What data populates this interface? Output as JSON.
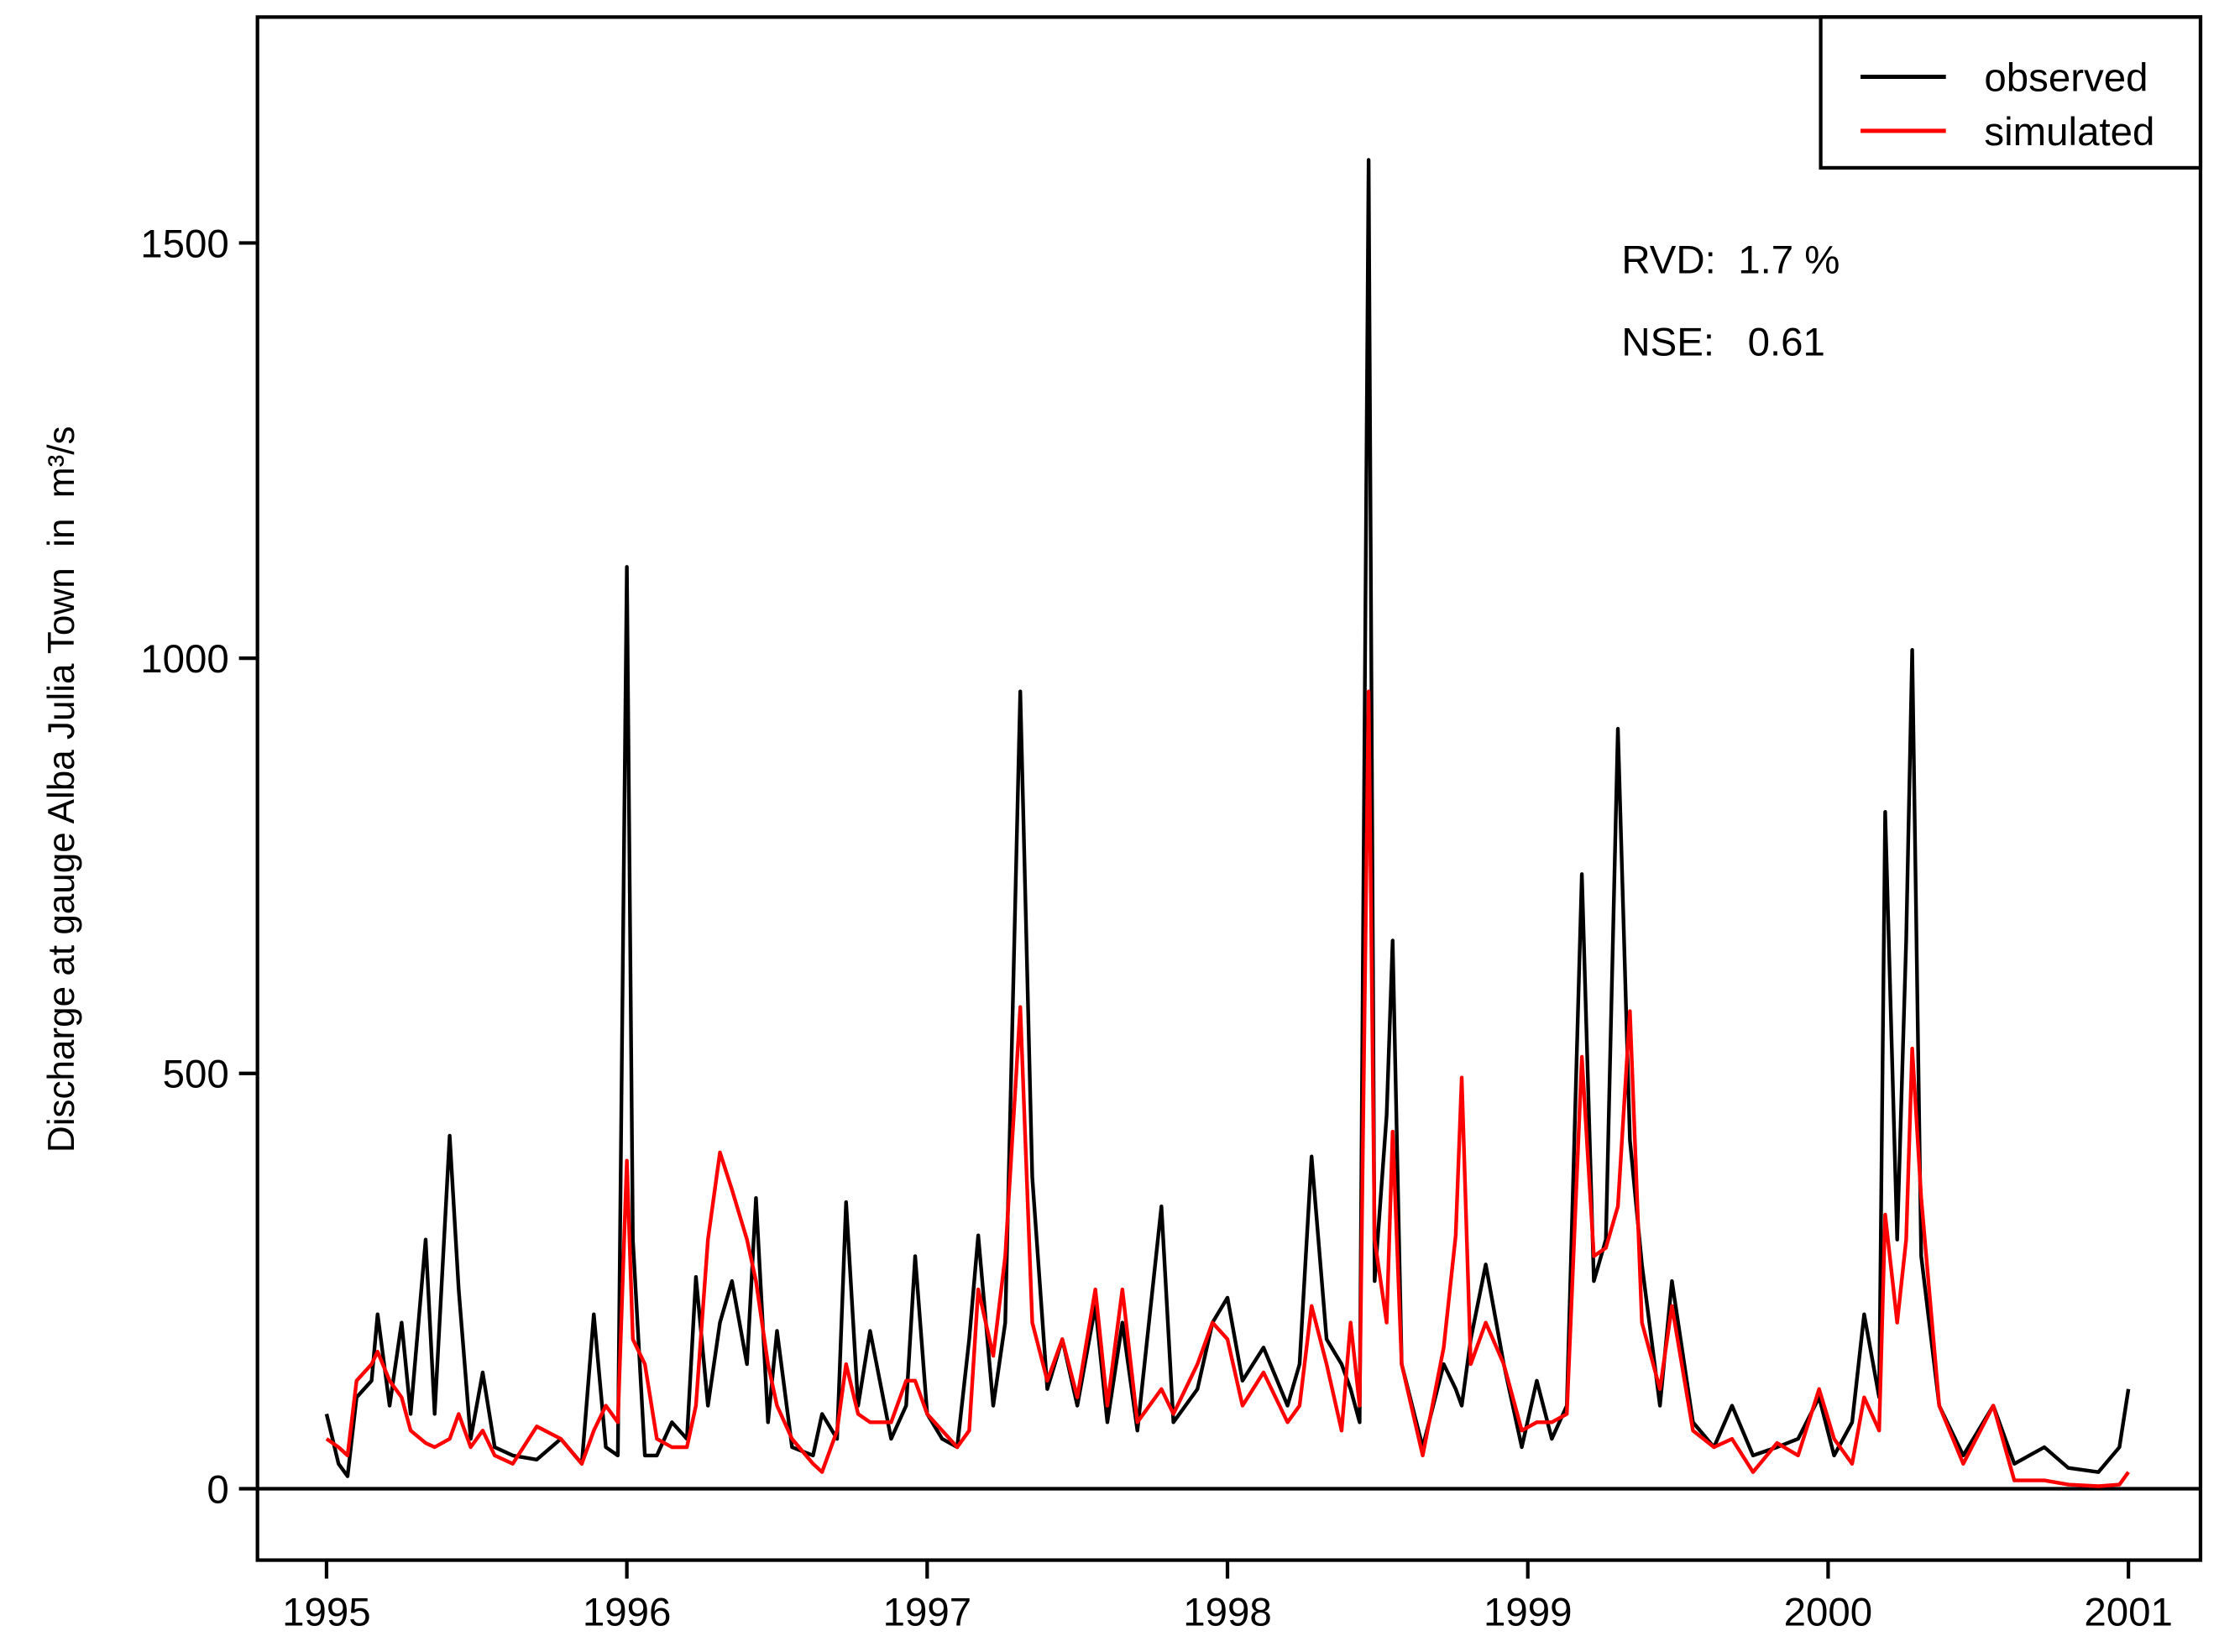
{
  "chart_data": {
    "type": "line",
    "ylabel": "Discharge at gauge Alba Julia Town  in  m³/s",
    "annotations": [
      "RVD:  1.7 %",
      "NSE:   0.61"
    ],
    "legend": "top-right",
    "xlim": [
      1994.77,
      2001.24
    ],
    "ylim": [
      -86,
      1772
    ],
    "xticks": [
      1995,
      1996,
      1997,
      1998,
      1999,
      2000,
      2001
    ],
    "yticks": [
      0,
      500,
      1000,
      1500
    ],
    "hline": 0,
    "x": [
      1995.0,
      1995.04,
      1995.07,
      1995.1,
      1995.15,
      1995.17,
      1995.21,
      1995.25,
      1995.28,
      1995.33,
      1995.36,
      1995.41,
      1995.44,
      1995.48,
      1995.52,
      1995.56,
      1995.62,
      1995.7,
      1995.78,
      1995.85,
      1995.89,
      1995.93,
      1995.97,
      1996.0,
      1996.02,
      1996.06,
      1996.1,
      1996.15,
      1996.2,
      1996.23,
      1996.27,
      1996.31,
      1996.35,
      1996.4,
      1996.43,
      1996.47,
      1996.5,
      1996.55,
      1996.62,
      1996.65,
      1996.7,
      1996.73,
      1996.77,
      1996.81,
      1996.88,
      1996.93,
      1996.96,
      1997.0,
      1997.05,
      1997.1,
      1997.14,
      1997.17,
      1997.22,
      1997.26,
      1997.31,
      1997.35,
      1997.4,
      1997.45,
      1997.5,
      1997.56,
      1997.6,
      1997.65,
      1997.7,
      1997.78,
      1997.82,
      1997.9,
      1997.95,
      1998.0,
      1998.05,
      1998.12,
      1998.2,
      1998.24,
      1998.28,
      1998.33,
      1998.38,
      1998.41,
      1998.44,
      1998.47,
      1998.49,
      1998.53,
      1998.55,
      1998.58,
      1998.65,
      1998.72,
      1998.76,
      1998.78,
      1998.81,
      1998.86,
      1998.92,
      1998.98,
      1999.03,
      1999.08,
      1999.13,
      1999.18,
      1999.22,
      1999.26,
      1999.3,
      1999.34,
      1999.38,
      1999.44,
      1999.48,
      1999.55,
      1999.62,
      1999.68,
      1999.75,
      1999.83,
      1999.9,
      1999.97,
      2000.02,
      2000.08,
      2000.12,
      2000.17,
      2000.19,
      2000.23,
      2000.26,
      2000.28,
      2000.31,
      2000.37,
      2000.45,
      2000.55,
      2000.62,
      2000.72,
      2000.8,
      2000.9,
      2000.97,
      2001.0
    ],
    "series": [
      {
        "name": "observed",
        "color": "#000000",
        "values": [
          90,
          30,
          15,
          110,
          130,
          210,
          100,
          200,
          90,
          300,
          90,
          425,
          240,
          60,
          140,
          50,
          40,
          35,
          60,
          30,
          210,
          50,
          40,
          1110,
          300,
          40,
          40,
          80,
          60,
          255,
          100,
          200,
          250,
          150,
          350,
          80,
          190,
          50,
          40,
          90,
          60,
          345,
          100,
          190,
          60,
          100,
          280,
          90,
          60,
          50,
          180,
          305,
          100,
          200,
          960,
          375,
          120,
          180,
          100,
          220,
          80,
          200,
          70,
          340,
          80,
          120,
          200,
          230,
          130,
          170,
          100,
          150,
          400,
          180,
          150,
          120,
          80,
          1600,
          250,
          450,
          660,
          150,
          50,
          150,
          120,
          100,
          180,
          270,
          150,
          50,
          130,
          60,
          100,
          740,
          250,
          300,
          915,
          420,
          270,
          100,
          250,
          80,
          50,
          100,
          40,
          50,
          60,
          110,
          40,
          80,
          210,
          110,
          815,
          300,
          660,
          1010,
          280,
          100,
          40,
          100,
          30,
          50,
          25,
          20,
          50,
          120
        ]
      },
      {
        "name": "simulated",
        "color": "#ff0000",
        "values": [
          60,
          50,
          40,
          130,
          150,
          165,
          130,
          110,
          70,
          55,
          50,
          60,
          90,
          50,
          70,
          40,
          30,
          75,
          60,
          30,
          70,
          100,
          80,
          395,
          180,
          150,
          60,
          50,
          50,
          100,
          300,
          405,
          360,
          300,
          250,
          150,
          100,
          60,
          30,
          20,
          70,
          150,
          90,
          80,
          80,
          130,
          130,
          90,
          70,
          50,
          70,
          240,
          160,
          280,
          580,
          200,
          130,
          180,
          110,
          240,
          100,
          240,
          80,
          120,
          90,
          150,
          200,
          180,
          100,
          140,
          80,
          100,
          220,
          150,
          70,
          200,
          100,
          960,
          300,
          200,
          430,
          150,
          40,
          170,
          305,
          495,
          150,
          200,
          150,
          70,
          80,
          80,
          90,
          520,
          280,
          290,
          340,
          575,
          200,
          120,
          220,
          70,
          50,
          60,
          20,
          55,
          40,
          120,
          60,
          30,
          110,
          70,
          330,
          200,
          300,
          530,
          350,
          100,
          30,
          100,
          10,
          10,
          5,
          3,
          5,
          20
        ]
      }
    ]
  }
}
